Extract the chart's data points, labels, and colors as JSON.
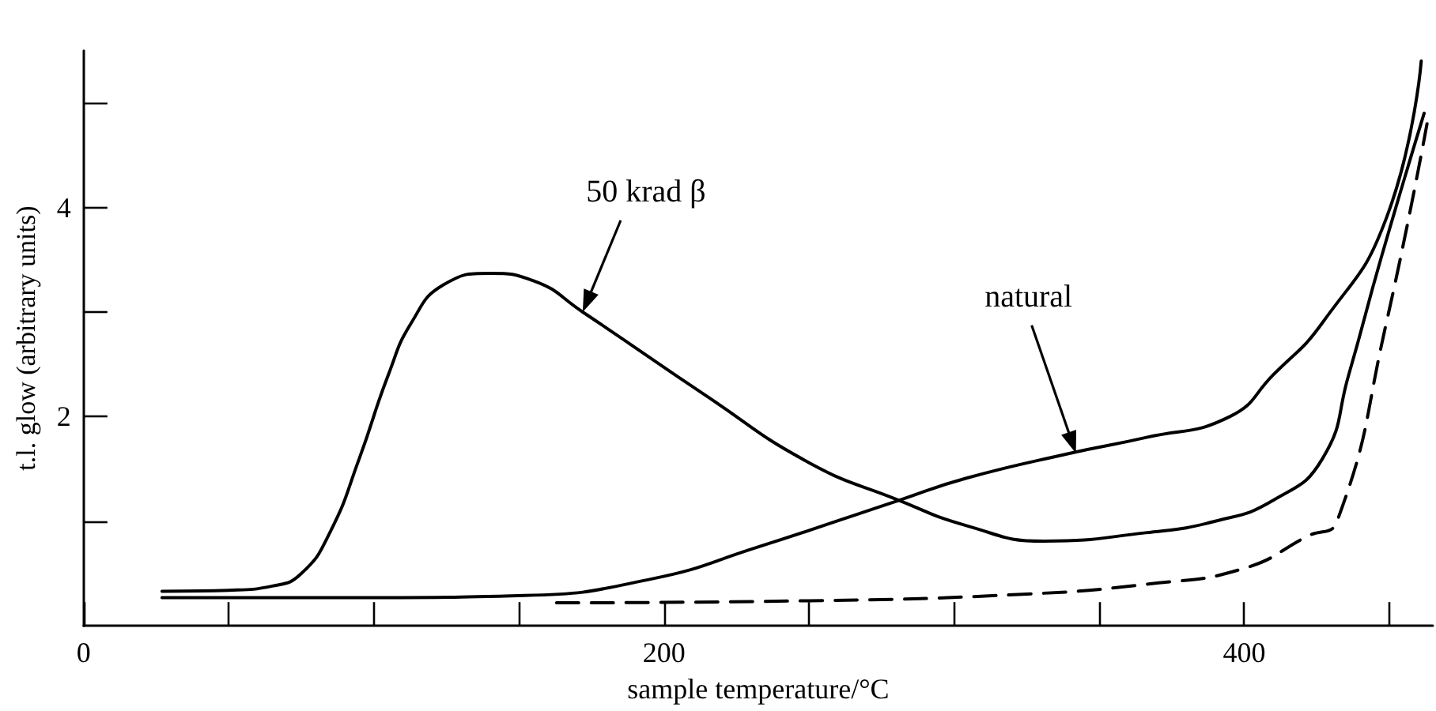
{
  "chart_data": {
    "type": "line",
    "xlabel": "sample temperature/°C",
    "ylabel": "t.l. glow (arbitrary units)",
    "xlim": [
      0,
      465
    ],
    "ylim": [
      0,
      5.5
    ],
    "xticks": [
      0,
      {
        "value": 50,
        "label": null
      },
      {
        "value": 100,
        "label": null
      },
      {
        "value": 150,
        "label": null
      },
      200,
      {
        "value": 250,
        "label": null
      },
      {
        "value": 300,
        "label": null
      },
      {
        "value": 350,
        "label": null
      },
      400,
      {
        "value": 450,
        "label": null
      }
    ],
    "yticks": [
      {
        "value": 1,
        "label": null
      },
      2,
      {
        "value": 3,
        "label": null
      },
      4,
      {
        "value": 5,
        "label": null
      }
    ],
    "grid": false,
    "marker": "none",
    "series": [
      {
        "color": "#000000",
        "line_style": "solid",
        "x": [
          27,
          50,
          65,
          75,
          85,
          95,
          105,
          113,
          124,
          140,
          155,
          172,
          214,
          250,
          281,
          304,
          331,
          366,
          390,
          410,
          427,
          436,
          447,
          462
        ],
        "values": [
          0.33,
          0.34,
          0.38,
          0.5,
          0.9,
          1.6,
          2.4,
          2.9,
          3.26,
          3.37,
          3.3,
          3.0,
          2.21,
          1.56,
          1.2,
          0.96,
          0.81,
          0.89,
          1.0,
          1.2,
          1.6,
          2.4,
          3.5,
          4.9
        ]
      },
      {
        "color": "#000000",
        "line_style": "solid",
        "x": [
          27,
          100,
          152,
          196,
          232,
          281,
          304,
          340,
          366,
          395,
          410,
          427,
          449,
          461
        ],
        "values": [
          0.27,
          0.27,
          0.29,
          0.45,
          0.75,
          1.2,
          1.41,
          1.65,
          1.8,
          2.0,
          2.4,
          2.9,
          3.9,
          5.4
        ]
      },
      {
        "color": "#000000",
        "line_style": "dashed",
        "x": [
          163,
          250,
          322,
          367,
          400,
          422,
          432,
          449,
          463
        ],
        "values": [
          0.22,
          0.24,
          0.3,
          0.4,
          0.55,
          0.86,
          1.0,
          2.9,
          4.8
        ]
      }
    ],
    "annotations": [
      {
        "text": "50 krad β",
        "x": 172,
        "y": 3.0
      },
      {
        "text": "natural",
        "x": 342,
        "y": 1.65
      }
    ]
  }
}
